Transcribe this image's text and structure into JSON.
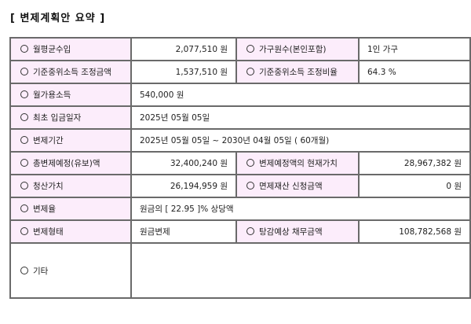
{
  "title": "[ 변제계획안 요약 ]",
  "rows": [
    {
      "l1": "월평균수입",
      "v1": "2,077,510 원",
      "l2": "가구원수(본인포함)",
      "v2": "1인 가구"
    },
    {
      "l1": "기준중위소득 조정금액",
      "v1": "1,537,510 원",
      "l2": "기준중위소득 조정비율",
      "v2": "64.3 %"
    },
    {
      "l1": "월가용소득",
      "v1": "540,000 원"
    },
    {
      "l1": "최초 입금일자",
      "v1": "2025년 05월 05일"
    },
    {
      "l1": "변제기간",
      "v1": "2025년 05월 05일 ~ 2030년 04월 05일 ( 60개월)"
    },
    {
      "l1": "총변제예정(유보)액",
      "v1": "32,400,240 원",
      "l2": "변제예정액의 현재가치",
      "v2": "28,967,382 원"
    },
    {
      "l1": "청산가치",
      "v1": "26,194,959 원",
      "l2": "면제재산 신청금액",
      "v2": "0 원"
    },
    {
      "l1": "변제율",
      "v1": "원금의 [ 22.95 ]% 상당액"
    },
    {
      "l1": "변제형태",
      "v1": "원금변제",
      "l2": "탕감예상 채무금액",
      "v2": "108,782,568 원"
    },
    {
      "l1": "기타",
      "v1": ""
    }
  ],
  "colors": {
    "label_bg": "#fcedfb",
    "border": "#6a6a6a"
  }
}
